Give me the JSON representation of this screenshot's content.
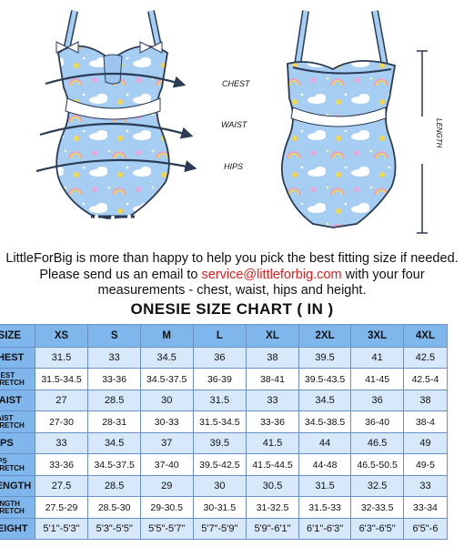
{
  "illustration": {
    "measure_labels": {
      "chest": "CHEST",
      "waist": "WAIST",
      "hips": "HIPS",
      "length": "LENGTH"
    }
  },
  "message": {
    "line1": "LittleForBig is more than happy to help you pick the best fitting size if needed.",
    "line2_pre": "Please send us an email to ",
    "email": "service@littleforbig.com",
    "line2_post": " with your four",
    "line3": "measurements - chest, waist, hips and height."
  },
  "title": "ONESIE SIZE CHART ( IN )",
  "table": {
    "header_label": "SIZE",
    "sizes": [
      "XS",
      "S",
      "M",
      "L",
      "XL",
      "2XL",
      "3XL",
      "4XL"
    ],
    "rows": [
      {
        "label": "CHEST",
        "values": [
          "31.5",
          "33",
          "34.5",
          "36",
          "38",
          "39.5",
          "41",
          "42.5"
        ]
      },
      {
        "label": "CHEST STRETCH",
        "values": [
          "31.5-34.5",
          "33-36",
          "34.5-37.5",
          "36-39",
          "38-41",
          "39.5-43.5",
          "41-45",
          "42.5-4"
        ]
      },
      {
        "label": "WAIST",
        "values": [
          "27",
          "28.5",
          "30",
          "31.5",
          "33",
          "34.5",
          "36",
          "38"
        ]
      },
      {
        "label": "WAIST STRETCH",
        "values": [
          "27-30",
          "28-31",
          "30-33",
          "31.5-34.5",
          "33-36",
          "34.5-38.5",
          "36-40",
          "38-4"
        ]
      },
      {
        "label": "HIPS",
        "values": [
          "33",
          "34.5",
          "37",
          "39.5",
          "41.5",
          "44",
          "46.5",
          "49"
        ]
      },
      {
        "label": "HIPS STRETCH",
        "values": [
          "33-36",
          "34.5-37.5",
          "37-40",
          "39.5-42.5",
          "41.5-44.5",
          "44-48",
          "46.5-50.5",
          "49-5"
        ]
      },
      {
        "label": "LENGTH",
        "values": [
          "27.5",
          "28.5",
          "29",
          "30",
          "30.5",
          "31.5",
          "32.5",
          "33"
        ]
      },
      {
        "label": "LENGTH STRETCH",
        "values": [
          "27.5-29",
          "28.5-30",
          "29-30.5",
          "30-31.5",
          "31-32.5",
          "31.5-33",
          "32-33.5",
          "33-34"
        ]
      },
      {
        "label": "HEIGHT",
        "values": [
          "5'1\"-5'3\"",
          "5'3\"-5'5\"",
          "5'5\"-5'7\"",
          "5'7\"-5'9\"",
          "5'9\"-6'1\"",
          "6'1\"-6'3\"",
          "6'3\"-6'5\"",
          "6'5\"-6"
        ]
      }
    ]
  },
  "colors": {
    "garment": "#a6cdf2",
    "header": "#7fb6ec",
    "row_alt": "#d6e8fa",
    "email": "#e0201c",
    "outline": "#2a3b55"
  }
}
